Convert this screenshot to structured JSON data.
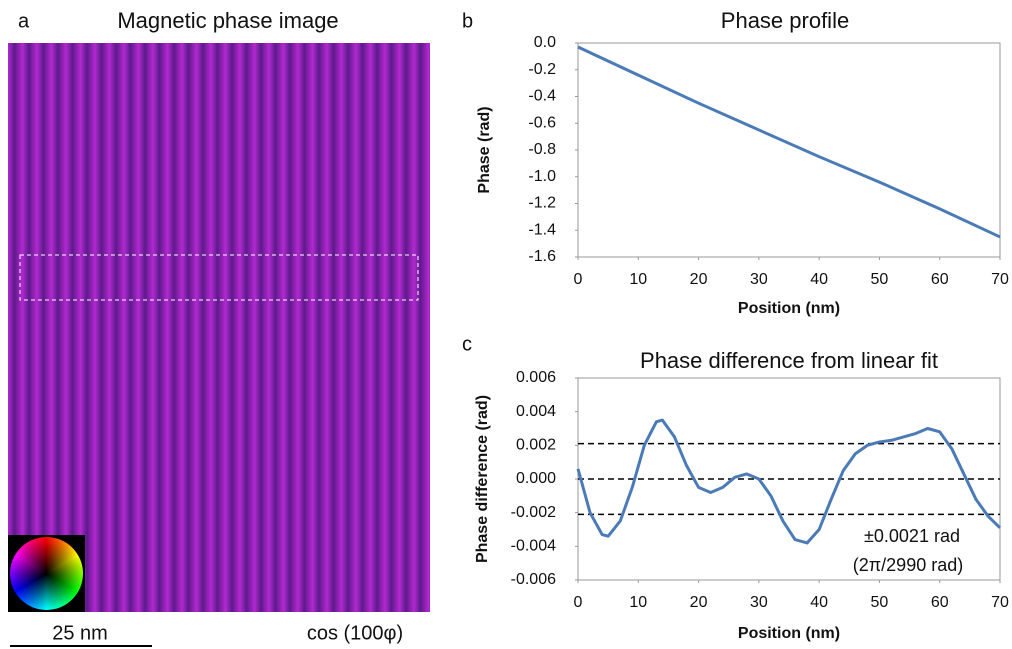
{
  "image_panel": {
    "label": "a",
    "title": "Magnetic phase image",
    "scale_bar": "25 nm",
    "caption": "cos (100φ)"
  },
  "chart_data": [
    {
      "type": "line",
      "label": "b",
      "title": "Phase profile",
      "xlabel": "Position (nm)",
      "ylabel": "Phase (rad)",
      "color": "#4a7ab8",
      "x": [
        0,
        10,
        20,
        30,
        40,
        50,
        60,
        70
      ],
      "values": [
        -0.03,
        -0.24,
        -0.45,
        -0.65,
        -0.85,
        -1.04,
        -1.24,
        -1.45
      ],
      "xlim": [
        0,
        70
      ],
      "xticks": [
        0,
        10,
        20,
        30,
        40,
        50,
        60,
        70
      ],
      "ylim": [
        -1.6,
        0
      ],
      "yticks": [
        {
          "value": 0,
          "label": "0.0"
        },
        -0.2,
        -0.4,
        -0.6,
        -0.8,
        {
          "value": -1,
          "label": "-1.0"
        },
        -1.2,
        -1.4,
        -1.6
      ]
    },
    {
      "type": "line",
      "label": "c",
      "title": "Phase difference from linear fit",
      "xlabel": "Position (nm)",
      "ylabel": "Phase difference (rad)",
      "color": "#4a7ab8",
      "x": [
        0,
        2,
        4,
        5,
        7,
        9,
        11,
        13,
        14,
        16,
        18,
        20,
        22,
        24,
        26,
        28,
        30,
        32,
        34,
        36,
        38,
        40,
        42,
        44,
        46,
        48,
        50,
        52,
        54,
        56,
        58,
        60,
        62,
        64,
        66,
        68,
        70
      ],
      "values": [
        0.0006,
        -0.002,
        -0.0033,
        -0.0034,
        -0.0025,
        -0.0005,
        0.002,
        0.0034,
        0.0035,
        0.0025,
        0.0008,
        -0.0005,
        -0.0008,
        -0.0005,
        0.0001,
        0.0003,
        0,
        -0.001,
        -0.0025,
        -0.0036,
        -0.0038,
        -0.003,
        -0.0012,
        0.0005,
        0.0015,
        0.002,
        0.0022,
        0.0023,
        0.0025,
        0.0027,
        0.003,
        0.0028,
        0.0018,
        0.0003,
        -0.0012,
        -0.0022,
        -0.0029
      ],
      "hlines": [
        0.0021,
        0,
        -0.0021
      ],
      "annotations": [
        "±0.0021 rad",
        "(2π/2990 rad)"
      ],
      "xlim": [
        0,
        70
      ],
      "xticks": [
        0,
        10,
        20,
        30,
        40,
        50,
        60,
        70
      ],
      "ylim": [
        -0.006,
        0.006
      ],
      "yticks": [
        0.006,
        0.004,
        0.002,
        {
          "value": 0,
          "label": "0.000"
        },
        -0.002,
        -0.004,
        -0.006
      ]
    }
  ]
}
